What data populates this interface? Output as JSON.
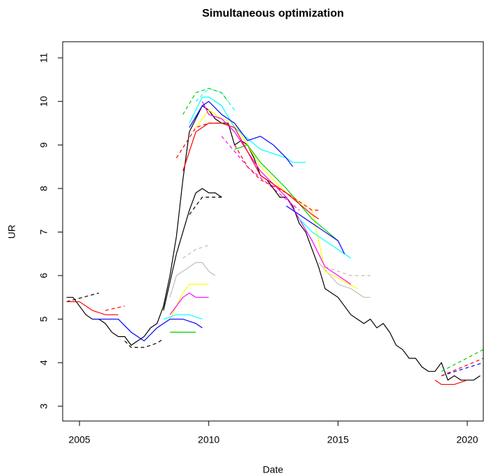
{
  "chart_data": {
    "type": "line",
    "title": "Simultaneous optimization",
    "x_label": "Date",
    "y_label": "UR",
    "xlim": [
      2004.35,
      2020.62
    ],
    "ylim": [
      2.66,
      11.37
    ],
    "xticks": [
      2005,
      2010,
      2015,
      2020
    ],
    "yticks": [
      3,
      4,
      5,
      6,
      7,
      8,
      9,
      10,
      11
    ],
    "series": [
      {
        "color": "#000000",
        "dashed": false,
        "x": [
          2004.5,
          2004.75,
          2005,
          2005.25,
          2005.5,
          2005.75,
          2006,
          2006.25,
          2006.5,
          2006.75,
          2007,
          2007.25,
          2007.5,
          2007.75,
          2008,
          2008.25,
          2008.5,
          2008.75,
          2009,
          2009.25,
          2009.5,
          2009.75,
          2010,
          2010.25,
          2010.5,
          2010.75,
          2011,
          2011.25,
          2011.5,
          2011.75,
          2012,
          2012.25,
          2012.5,
          2012.75,
          2013,
          2013.25,
          2013.5,
          2013.75,
          2014,
          2014.25,
          2014.5,
          2014.75,
          2015,
          2015.25,
          2015.5,
          2015.75,
          2016,
          2016.25,
          2016.5,
          2016.75,
          2017,
          2017.25,
          2017.5,
          2017.75,
          2018,
          2018.25,
          2018.5,
          2018.75,
          2019,
          2019.25,
          2019.5,
          2019.75,
          2020,
          2020.25,
          2020.5
        ],
        "values": [
          5.5,
          5.5,
          5.3,
          5.1,
          5.0,
          5.0,
          4.9,
          4.7,
          4.6,
          4.6,
          4.4,
          4.5,
          4.6,
          4.8,
          4.9,
          5.3,
          6.0,
          6.9,
          8.2,
          9.3,
          9.6,
          9.9,
          9.8,
          9.6,
          9.5,
          9.5,
          9.0,
          9.1,
          9.0,
          8.7,
          8.3,
          8.2,
          8.0,
          7.8,
          7.8,
          7.6,
          7.2,
          7.0,
          6.6,
          6.2,
          5.7,
          5.6,
          5.5,
          5.3,
          5.1,
          5.0,
          4.9,
          5.0,
          4.8,
          4.9,
          4.7,
          4.4,
          4.3,
          4.1,
          4.1,
          3.9,
          3.8,
          3.8,
          4.0,
          3.6,
          3.7,
          3.6,
          3.6,
          3.6,
          3.7
        ]
      },
      {
        "color": "#000000",
        "dashed": false,
        "x": [
          2008.25,
          2008.75,
          2009.25,
          2009.5,
          2009.75,
          2010,
          2010.25,
          2010.5
        ],
        "values": [
          5.2,
          6.5,
          7.5,
          7.9,
          8.0,
          7.9,
          7.9,
          7.8
        ]
      },
      {
        "color": "#000000",
        "dashed": true,
        "x": [
          2009.25,
          2009.75,
          2010.25,
          2010.5
        ],
        "values": [
          7.4,
          7.8,
          7.8,
          7.8
        ]
      },
      {
        "color": "#000000",
        "dashed": true,
        "x": [
          2006.75,
          2007,
          2007.5,
          2008,
          2008.25
        ],
        "values": [
          4.5,
          4.35,
          4.35,
          4.45,
          4.55
        ]
      },
      {
        "color": "#000000",
        "dashed": true,
        "x": [
          2004.5,
          2005.75
        ],
        "values": [
          5.4,
          5.6
        ]
      },
      {
        "color": "#bebebe",
        "dashed": false,
        "x": [
          2008.5,
          2008.75,
          2009.25,
          2009.5,
          2009.75,
          2010,
          2010.25
        ],
        "values": [
          5.5,
          6.0,
          6.2,
          6.3,
          6.3,
          6.1,
          6.0
        ]
      },
      {
        "color": "#bebebe",
        "dashed": true,
        "x": [
          2009,
          2009.5,
          2010
        ],
        "values": [
          6.4,
          6.6,
          6.7
        ]
      },
      {
        "color": "#bebebe",
        "dashed": false,
        "x": [
          2014.25,
          2015,
          2015.5,
          2016,
          2016.25
        ],
        "values": [
          6.3,
          5.8,
          5.7,
          5.5,
          5.5
        ]
      },
      {
        "color": "#bebebe",
        "dashed": true,
        "x": [
          2014.5,
          2015.5,
          2016.25
        ],
        "values": [
          6.2,
          6.0,
          6.0
        ]
      },
      {
        "color": "#ffff00",
        "dashed": false,
        "x": [
          2008.5,
          2009,
          2009.25,
          2010
        ],
        "values": [
          5.0,
          5.6,
          5.8,
          5.8
        ]
      },
      {
        "color": "#ffff00",
        "dashed": false,
        "x": [
          2009.5,
          2010,
          2010.5,
          2011,
          2012,
          2013,
          2014,
          2014.5,
          2015.75
        ],
        "values": [
          9.4,
          9.8,
          9.6,
          9.5,
          8.5,
          7.9,
          7.5,
          6.1,
          5.7
        ]
      },
      {
        "color": "#ff00ff",
        "dashed": false,
        "x": [
          2008.5,
          2009,
          2009.25,
          2009.5,
          2010
        ],
        "values": [
          5.1,
          5.5,
          5.6,
          5.5,
          5.5
        ]
      },
      {
        "color": "#ff00ff",
        "dashed": false,
        "x": [
          2009.75,
          2010,
          2010.5,
          2011,
          2012,
          2013,
          2014,
          2014.5,
          2015,
          2015.5
        ],
        "values": [
          10.0,
          9.7,
          9.6,
          9.3,
          8.4,
          7.8,
          6.8,
          6.2,
          6.0,
          5.8
        ]
      },
      {
        "color": "#ff00ff",
        "dashed": true,
        "x": [
          2010.5,
          2011.5,
          2012.5,
          2013.5
        ],
        "values": [
          9.2,
          8.5,
          8.0,
          7.5
        ]
      },
      {
        "color": "#00ffff",
        "dashed": false,
        "x": [
          2008.25,
          2008.75,
          2009.25,
          2009.75
        ],
        "values": [
          5.0,
          5.1,
          5.1,
          5.0
        ]
      },
      {
        "color": "#00ffff",
        "dashed": false,
        "x": [
          2009.25,
          2009.75,
          2010,
          2010.5,
          2011,
          2012,
          2013,
          2013.25,
          2013.75
        ],
        "values": [
          9.5,
          10.1,
          10.1,
          9.9,
          9.4,
          8.9,
          8.7,
          8.6,
          8.6
        ]
      },
      {
        "color": "#00ffff",
        "dashed": true,
        "x": [
          2009.5,
          2010,
          2010.5,
          2011
        ],
        "values": [
          10.0,
          10.3,
          10.2,
          9.8
        ]
      },
      {
        "color": "#00ffff",
        "dashed": false,
        "x": [
          2013.5,
          2014,
          2014.5,
          2015,
          2015.5
        ],
        "values": [
          7.3,
          7.0,
          6.8,
          6.6,
          6.4
        ]
      },
      {
        "color": "#00cd00",
        "dashed": true,
        "x": [
          2009,
          2009.5,
          2010,
          2010.5,
          2010.75
        ],
        "values": [
          9.7,
          10.2,
          10.3,
          10.2,
          10.0
        ]
      },
      {
        "color": "#00cd00",
        "dashed": false,
        "x": [
          2008.5,
          2009.5
        ],
        "values": [
          4.7,
          4.7
        ]
      },
      {
        "color": "#00cd00",
        "dashed": false,
        "x": [
          2011,
          2011.5,
          2012,
          2013,
          2014,
          2015
        ],
        "values": [
          8.9,
          9.0,
          8.6,
          8.0,
          7.3,
          6.8
        ]
      },
      {
        "color": "#00cd00",
        "dashed": true,
        "x": [
          2019,
          2020.62
        ],
        "values": [
          3.8,
          4.3
        ]
      },
      {
        "color": "#0000ff",
        "dashed": false,
        "x": [
          2009.25,
          2009.75,
          2010,
          2010.5,
          2011,
          2011.5,
          2012,
          2012.5,
          2013,
          2013.25
        ],
        "values": [
          9.4,
          9.9,
          10.0,
          9.7,
          9.5,
          9.1,
          9.2,
          9.0,
          8.7,
          8.5
        ]
      },
      {
        "color": "#0000ff",
        "dashed": false,
        "x": [
          2013,
          2014,
          2014.5,
          2015,
          2015.25
        ],
        "values": [
          7.6,
          7.2,
          7.0,
          6.8,
          6.5
        ]
      },
      {
        "color": "#0000ff",
        "dashed": false,
        "x": [
          2005.5,
          2006.5,
          2007,
          2007.5,
          2008,
          2008.5,
          2009,
          2009.5,
          2009.75
        ],
        "values": [
          5.0,
          5.0,
          4.7,
          4.5,
          4.8,
          5.0,
          5.0,
          4.9,
          4.8
        ]
      },
      {
        "color": "#0000ff",
        "dashed": true,
        "x": [
          2019,
          2020.62
        ],
        "values": [
          3.7,
          4.0
        ]
      },
      {
        "color": "#ff0000",
        "dashed": false,
        "x": [
          2009,
          2009.5,
          2010,
          2010.5,
          2011,
          2012,
          2013,
          2014,
          2014.25
        ],
        "values": [
          8.4,
          9.3,
          9.5,
          9.5,
          9.4,
          8.3,
          7.9,
          7.4,
          7.3
        ]
      },
      {
        "color": "#ff0000",
        "dashed": true,
        "x": [
          2008.75,
          2009.5,
          2010,
          2010.5
        ],
        "values": [
          8.7,
          9.4,
          9.5,
          9.5
        ]
      },
      {
        "color": "#ff0000",
        "dashed": true,
        "x": [
          2011,
          2011.5,
          2012,
          2013,
          2014,
          2014.25
        ],
        "values": [
          9.0,
          8.5,
          8.2,
          7.9,
          7.5,
          7.5
        ]
      },
      {
        "color": "#ff0000",
        "dashed": false,
        "x": [
          2018.75,
          2019,
          2019.5,
          2020
        ],
        "values": [
          3.6,
          3.5,
          3.5,
          3.6
        ]
      },
      {
        "color": "#ff0000",
        "dashed": true,
        "x": [
          2019,
          2020.62
        ],
        "values": [
          3.7,
          4.1
        ]
      },
      {
        "color": "#ff0000",
        "dashed": false,
        "x": [
          2004.5,
          2005,
          2005.5,
          2006,
          2006.5
        ],
        "values": [
          5.4,
          5.4,
          5.2,
          5.1,
          5.1
        ]
      },
      {
        "color": "#ff0000",
        "dashed": true,
        "x": [
          2006,
          2006.75
        ],
        "values": [
          5.2,
          5.3
        ]
      }
    ]
  }
}
